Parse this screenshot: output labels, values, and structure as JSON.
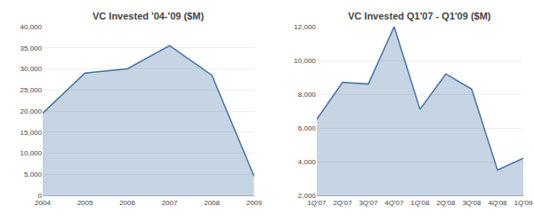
{
  "chart_data": [
    {
      "type": "area",
      "title": "VC Invested '04-'09 ($M)",
      "x": [
        2004,
        2005,
        2006,
        2007,
        2008,
        2009
      ],
      "values": [
        19500,
        29000,
        30000,
        35500,
        28500,
        4500
      ],
      "xlim": [
        2004,
        2009
      ],
      "xticks": [
        2004,
        2005,
        2006,
        2007,
        2008,
        2009
      ],
      "ylim": [
        0,
        40000
      ],
      "yticks": [
        0,
        {
          "value": 5000,
          "label": "5,000"
        },
        {
          "value": 10000,
          "label": "10,000"
        },
        {
          "value": 15000,
          "label": "15,000"
        },
        {
          "value": 20000,
          "label": "20,000"
        },
        {
          "value": 25000,
          "label": "25,000"
        },
        {
          "value": 30000,
          "label": "30,000"
        },
        {
          "value": 35000,
          "label": "35,000"
        },
        {
          "value": 40000,
          "label": "40,000"
        }
      ],
      "color": "#4472a4",
      "grid": true
    },
    {
      "type": "area",
      "title": "VC Invested Q1'07 - Q1'09 ($M)",
      "categories": [
        "1Q'07",
        "2Q'07",
        "3Q'07",
        "4Q'07",
        "1Q'08",
        "2Q'08",
        "3Q'08",
        "4Q'08",
        "1Q'09"
      ],
      "values": [
        6500,
        8700,
        8600,
        12000,
        7100,
        9200,
        8300,
        3500,
        4200
      ],
      "ylim": [
        2000,
        12000
      ],
      "yticks": [
        {
          "value": 2000,
          "label": "2,000"
        },
        {
          "value": 4000,
          "label": "4,000"
        },
        {
          "value": 6000,
          "label": "6,000"
        },
        {
          "value": 8000,
          "label": "8,000"
        },
        {
          "value": 10000,
          "label": "10,000"
        },
        {
          "value": 12000,
          "label": "12,000"
        }
      ],
      "color": "#4472a4",
      "grid": true
    }
  ]
}
